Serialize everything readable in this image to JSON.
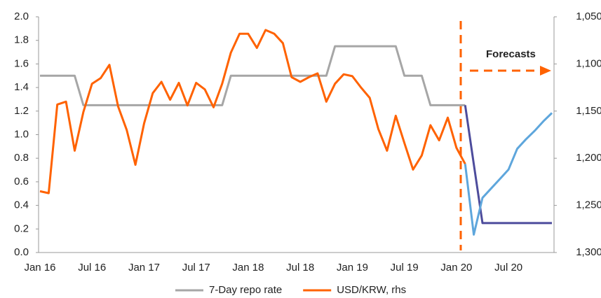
{
  "chart_data": {
    "type": "line",
    "annotations": [
      "Forecasts"
    ],
    "categories": [
      "Jan 16",
      null,
      null,
      null,
      null,
      null,
      "Jul 16",
      null,
      null,
      null,
      null,
      null,
      "Jan 17",
      null,
      null,
      null,
      null,
      null,
      "Jul 17",
      null,
      null,
      null,
      null,
      null,
      "Jan 18",
      null,
      null,
      null,
      null,
      null,
      "Jul 18",
      null,
      null,
      null,
      null,
      null,
      "Jan 19",
      null,
      null,
      null,
      null,
      null,
      "Jul 19",
      null,
      null,
      null,
      null,
      null,
      "Jan 20",
      null,
      null,
      null,
      null,
      null,
      "Jul 20",
      null,
      null,
      null,
      null,
      null
    ],
    "series": [
      {
        "name": "7-Day repo rate",
        "color": "#a6a6a6",
        "axis": "y",
        "values": [
          1.5,
          1.5,
          1.5,
          1.5,
          1.5,
          1.25,
          1.25,
          1.25,
          1.25,
          1.25,
          1.25,
          1.25,
          1.25,
          1.25,
          1.25,
          1.25,
          1.25,
          1.25,
          1.25,
          1.25,
          1.25,
          1.25,
          1.5,
          1.5,
          1.5,
          1.5,
          1.5,
          1.5,
          1.5,
          1.5,
          1.5,
          1.5,
          1.5,
          1.5,
          1.75,
          1.75,
          1.75,
          1.75,
          1.75,
          1.75,
          1.75,
          1.75,
          1.5,
          1.5,
          1.5,
          1.25,
          1.25,
          1.25,
          1.25,
          1.25,
          null,
          null,
          null,
          null,
          null,
          null,
          null,
          null,
          null,
          null
        ]
      },
      {
        "name": "USD/KRW, rhs",
        "color": "#ff6200",
        "axis": "y2",
        "values": [
          1235,
          1237,
          1143,
          1140,
          1192,
          1151,
          1121,
          1115,
          1101,
          1145,
          1170,
          1207,
          1163,
          1131,
          1119,
          1138,
          1120,
          1144,
          1120,
          1127,
          1146,
          1121,
          1088,
          1068,
          1068,
          1083,
          1064,
          1068,
          1078,
          1114,
          1119,
          1114,
          1110,
          1140,
          1121,
          1111,
          1113,
          1125,
          1136,
          1169,
          1192,
          1155,
          1184,
          1212,
          1197,
          1165,
          1181,
          1157,
          1189,
          1206,
          null,
          null,
          null,
          null,
          null,
          null,
          null,
          null,
          null,
          null
        ]
      },
      {
        "color": "#4d4c9c",
        "axis": "y",
        "values": [
          null,
          null,
          null,
          null,
          null,
          null,
          null,
          null,
          null,
          null,
          null,
          null,
          null,
          null,
          null,
          null,
          null,
          null,
          null,
          null,
          null,
          null,
          null,
          null,
          null,
          null,
          null,
          null,
          null,
          null,
          null,
          null,
          null,
          null,
          null,
          null,
          null,
          null,
          null,
          null,
          null,
          null,
          null,
          null,
          null,
          null,
          null,
          null,
          null,
          1.25,
          0.75,
          0.25,
          0.25,
          0.25,
          0.25,
          0.25,
          0.25,
          0.25,
          0.25,
          0.25
        ]
      },
      {
        "color": "#5ea6dc",
        "axis": "y2",
        "values": [
          null,
          null,
          null,
          null,
          null,
          null,
          null,
          null,
          null,
          null,
          null,
          null,
          null,
          null,
          null,
          null,
          null,
          null,
          null,
          null,
          null,
          null,
          null,
          null,
          null,
          null,
          null,
          null,
          null,
          null,
          null,
          null,
          null,
          null,
          null,
          null,
          null,
          null,
          null,
          null,
          null,
          null,
          null,
          null,
          null,
          null,
          null,
          null,
          null,
          1206,
          1281,
          1242,
          1232,
          1222,
          1212,
          1190,
          1180,
          1171,
          1161,
          1152
        ]
      }
    ],
    "ylim": [
      0,
      2
    ],
    "yticks": [
      {
        "value": 0,
        "label": "0.0"
      },
      0.2,
      0.4,
      0.6,
      0.8,
      {
        "value": 1,
        "label": "1.0"
      },
      1.2,
      1.4,
      1.6,
      1.8,
      {
        "value": 2,
        "label": "2.0"
      }
    ],
    "y2lim": [
      1300,
      1050
    ],
    "y2ticks": [
      {
        "value": 1300,
        "label": "1,300"
      },
      {
        "value": 1250,
        "label": "1,250"
      },
      {
        "value": 1200,
        "label": "1,200"
      },
      {
        "value": 1150,
        "label": "1,150"
      },
      {
        "value": 1100,
        "label": "1,100"
      },
      {
        "value": 1050,
        "label": "1,050"
      }
    ],
    "grid": false,
    "legend": "bottom"
  }
}
